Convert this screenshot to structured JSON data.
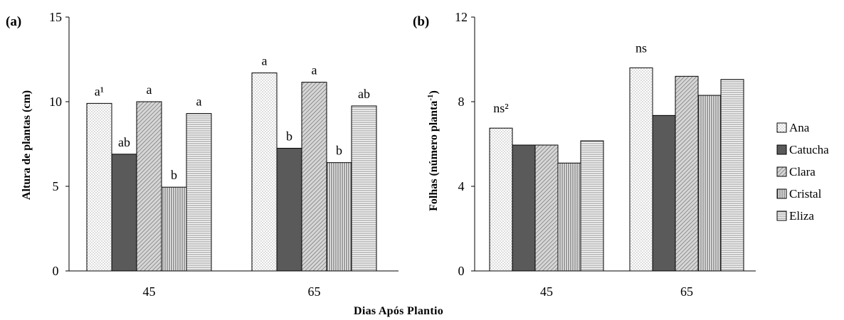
{
  "figure": {
    "xlabel": "Dias Após Plantio"
  },
  "legend": [
    {
      "label": "Ana",
      "pattern": "dots"
    },
    {
      "label": "Catucha",
      "pattern": "solid-dark"
    },
    {
      "label": "Clara",
      "pattern": "diagonal"
    },
    {
      "label": "Cristal",
      "pattern": "vertical"
    },
    {
      "label": "Eliza",
      "pattern": "horizontal"
    }
  ],
  "chart_data": [
    {
      "type": "bar",
      "panel_label": "(a)",
      "ylabel": "Altura  de plantas  (cm)",
      "categories": [
        "45",
        "65"
      ],
      "ylim": [
        0,
        15
      ],
      "yticks": [
        "0",
        "5",
        "10",
        "15"
      ],
      "grid": false,
      "series": [
        {
          "name": "Ana",
          "values": [
            9.9,
            11.7
          ],
          "labels": [
            "a¹",
            "a"
          ]
        },
        {
          "name": "Catucha",
          "values": [
            6.9,
            7.25
          ],
          "labels": [
            "ab",
            "b"
          ]
        },
        {
          "name": "Clara",
          "values": [
            10.0,
            11.15
          ],
          "labels": [
            "a",
            "a"
          ]
        },
        {
          "name": "Cristal",
          "values": [
            4.95,
            6.4
          ],
          "labels": [
            "b",
            "b"
          ]
        },
        {
          "name": "Eliza",
          "values": [
            9.3,
            9.75
          ],
          "labels": [
            "a",
            "ab"
          ]
        }
      ]
    },
    {
      "type": "bar",
      "panel_label": "(b)",
      "ylabel": "Folhas  (número planta-1)",
      "categories": [
        "45",
        "65"
      ],
      "ylim": [
        0,
        12
      ],
      "yticks": [
        "0",
        "4",
        "8",
        "12"
      ],
      "grid": false,
      "group_labels": [
        "ns²",
        "ns"
      ],
      "series": [
        {
          "name": "Ana",
          "values": [
            6.75,
            9.6
          ]
        },
        {
          "name": "Catucha",
          "values": [
            5.95,
            7.35
          ]
        },
        {
          "name": "Clara",
          "values": [
            5.95,
            9.2
          ]
        },
        {
          "name": "Cristal",
          "values": [
            5.1,
            8.3
          ]
        },
        {
          "name": "Eliza",
          "values": [
            6.15,
            9.05
          ]
        }
      ]
    }
  ]
}
